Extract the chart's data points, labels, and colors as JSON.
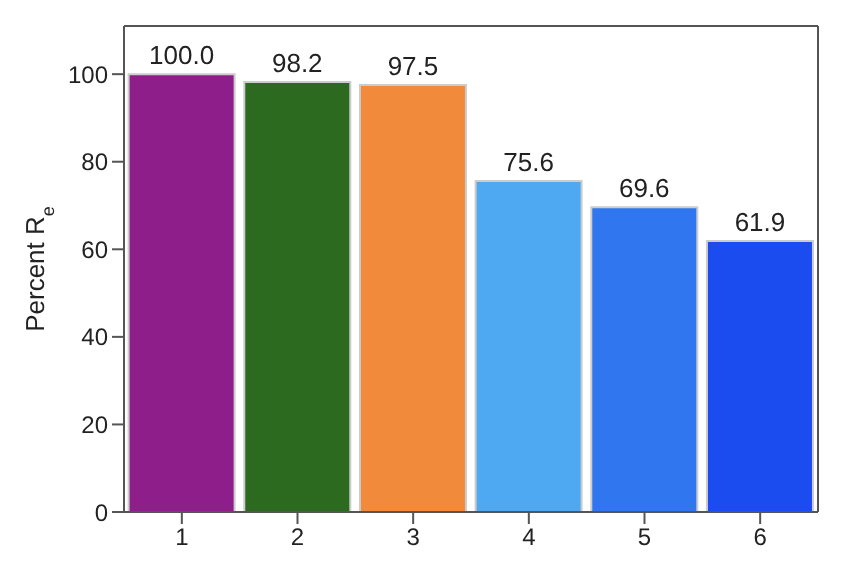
{
  "chart_data": {
    "type": "bar",
    "ylabel": "Percent R$_{e}$",
    "categories": [
      "1",
      "2",
      "3",
      "4",
      "5",
      "6"
    ],
    "values": [
      100.0,
      98.2,
      97.5,
      75.6,
      69.6,
      61.9
    ],
    "value_labels": [
      "100.0",
      "98.2",
      "97.5",
      "75.6",
      "69.6",
      "61.9"
    ],
    "colors": [
      "#8e1f8a",
      "#2b6a1f",
      "#f28a3c",
      "#4ea9f2",
      "#2f76ef",
      "#1a4cf0"
    ],
    "ylim": [
      0,
      111
    ],
    "yticks": [
      0,
      20,
      40,
      60,
      80,
      100
    ],
    "grid": false
  }
}
